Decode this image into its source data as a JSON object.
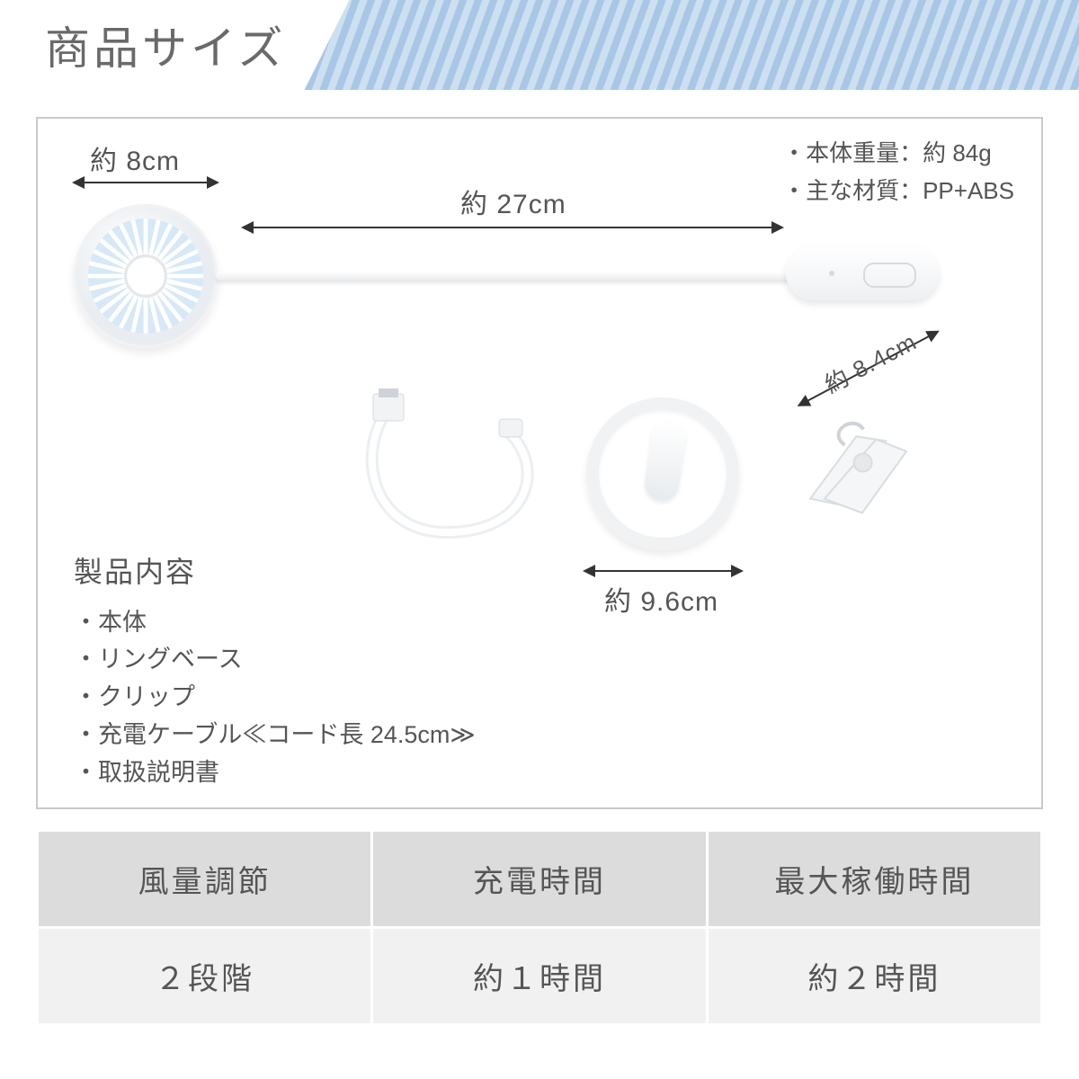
{
  "header": {
    "title": "商品サイズ"
  },
  "dimensions": {
    "fan_width": "約 8cm",
    "arm_length": "約 27cm",
    "ring_width": "約 9.6cm",
    "clip_length": "約 8.4cm"
  },
  "meta": {
    "weight_label": "・本体重量：",
    "weight_value": "約 84g",
    "material_label": "・主な材質：",
    "material_value": "PP+ABS"
  },
  "contents": {
    "heading": "製品内容",
    "items": [
      "・本体",
      "・リングベース",
      "・クリップ",
      "・充電ケーブル≪コード長 24.5cm≫",
      "・取扱説明書"
    ]
  },
  "table": {
    "headers": [
      "風量調節",
      "充電時間",
      "最大稼働時間"
    ],
    "values": [
      "２段階",
      "約１時間",
      "約２時間"
    ]
  },
  "colors": {
    "stripe_a": "#a8c7e6",
    "stripe_b": "#cde0f0",
    "border": "#c9c9c9",
    "text": "#555555",
    "table_header_bg": "#dcdcdc",
    "table_value_bg": "#f1f1f1"
  }
}
